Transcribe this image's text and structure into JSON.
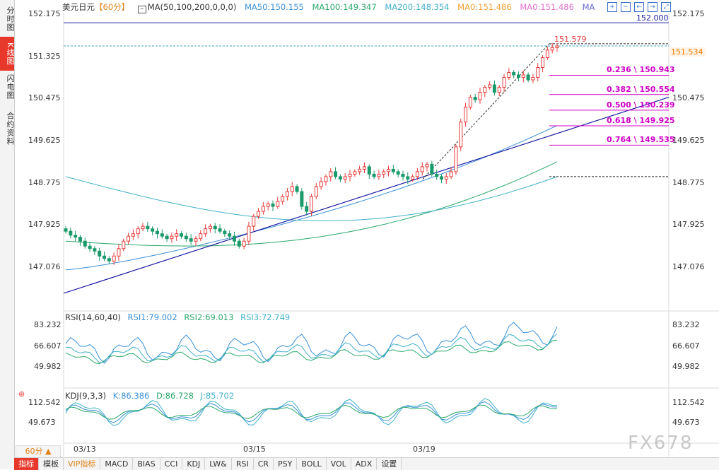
{
  "rail": {
    "items": [
      "分时图",
      "K线图",
      "闪电图",
      "合约资料"
    ]
  },
  "header": {
    "symbol": "美元日元",
    "period": "【60分】",
    "ma_label": "MA(50,100,200,0,0,0)",
    "ma50": "MA50:150.155",
    "ma100": "MA100:149.347",
    "ma200": "MA200:148.354",
    "ma0a": "MA0:151.486",
    "ma0b": "MA0:151.486",
    "ma_tail": "MA"
  },
  "colors": {
    "ma50": "#3a8fd8",
    "ma100": "#2aa86a",
    "ma200": "#3fb0c8",
    "trend": "#1a1aa0",
    "fib": "#d000c8",
    "up": "#e83a3a",
    "down": "#1a9a6a",
    "current": "#f07a00"
  },
  "price_axis": {
    "ticks": [
      "152.175",
      "151.325",
      "150.475",
      "149.625",
      "148.775",
      "147.925",
      "147.076"
    ],
    "ticks_right": [
      "152.175",
      "151.534",
      "150.475",
      "149.625",
      "148.775",
      "147.925",
      "147.076"
    ]
  },
  "hline": {
    "label": "152.000"
  },
  "high_label": "151.579",
  "current_price": "151.534",
  "fib": [
    {
      "ratio": "0.236",
      "value": "150.943"
    },
    {
      "ratio": "0.382",
      "value": "150.554"
    },
    {
      "ratio": "0.500",
      "value": "150.239"
    },
    {
      "ratio": "0.618",
      "value": "149.925"
    },
    {
      "ratio": "0.764",
      "value": "149.535"
    }
  ],
  "rsi": {
    "title": "RSI(14,60,40)",
    "rsi1": "RSI1:79.002",
    "rsi2": "RSI2:69.013",
    "rsi3": "RSI3:72.749",
    "ticks": [
      "83.232",
      "66.607",
      "49.982"
    ]
  },
  "kdj": {
    "title": "KDJ(9,3,3)",
    "k": "K:86.386",
    "d": "D:86.728",
    "j": "J:85.702",
    "ticks": [
      "112.542",
      "49.673"
    ]
  },
  "dates": [
    "03/13",
    "03/15",
    "03/19"
  ],
  "period_tab": "60分 ▲",
  "bottom_bar": [
    "指标",
    "模板",
    "VIP指标",
    "MACD",
    "BIAS",
    "CCI",
    "KDJ",
    "LW&",
    "RSI",
    "CR",
    "PSY",
    "BOLL",
    "VOL",
    "ADX",
    "设置"
  ],
  "watermark": "FX678",
  "chart_data": {
    "type": "candlestick",
    "title": "美元日元【60分】",
    "ylim": [
      146.9,
      152.35
    ],
    "x_labels": [
      "03/13",
      "03/15",
      "03/19"
    ],
    "closes": [
      147.8,
      147.72,
      147.68,
      147.6,
      147.5,
      147.45,
      147.4,
      147.3,
      147.25,
      147.2,
      147.3,
      147.45,
      147.6,
      147.7,
      147.75,
      147.85,
      147.9,
      147.85,
      147.8,
      147.75,
      147.7,
      147.65,
      147.7,
      147.75,
      147.7,
      147.65,
      147.6,
      147.65,
      147.75,
      147.85,
      147.9,
      147.85,
      147.8,
      147.75,
      147.7,
      147.6,
      147.5,
      147.6,
      147.9,
      148.1,
      148.2,
      148.3,
      148.35,
      148.3,
      148.4,
      148.5,
      148.6,
      148.7,
      148.6,
      148.3,
      148.2,
      148.5,
      148.7,
      148.8,
      148.9,
      149.0,
      148.9,
      148.85,
      148.9,
      148.95,
      149.0,
      149.05,
      149.1,
      148.95,
      148.9,
      148.95,
      149.0,
      149.05,
      149.0,
      148.95,
      148.9,
      148.85,
      148.9,
      149.0,
      149.1,
      149.15,
      148.95,
      148.9,
      148.85,
      148.9,
      149.0,
      149.5,
      150.0,
      150.3,
      150.5,
      150.45,
      150.6,
      150.7,
      150.75,
      150.6,
      150.7,
      150.9,
      151.0,
      150.95,
      150.9,
      150.95,
      150.85,
      150.9,
      151.1,
      151.3,
      151.45,
      151.5,
      151.534
    ],
    "ma50": {
      "start": 147.02,
      "end": 149.93
    },
    "ma100": {
      "start": 147.6,
      "end": 149.2
    },
    "ma200": {
      "start": 148.9,
      "end": 148.0
    },
    "hline": 152.0,
    "high": 151.579,
    "fibonacci": [
      150.943,
      150.554,
      150.239,
      149.925,
      149.535
    ],
    "rsi": {
      "ylim": [
        45,
        88
      ],
      "rsi1": 79.002,
      "rsi2": 69.013,
      "rsi3": 72.749
    },
    "kdj": {
      "ylim": [
        25,
        135
      ],
      "k": 86.386,
      "d": 86.728,
      "j": 85.702
    }
  }
}
